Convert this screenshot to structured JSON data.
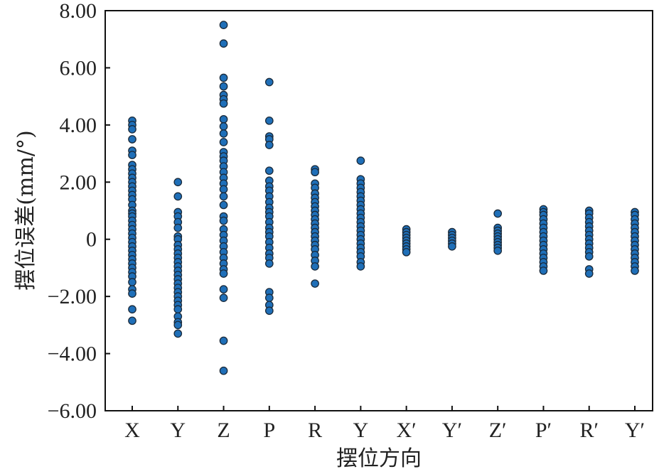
{
  "chart_data": {
    "type": "scatter",
    "title": "",
    "xlabel": "摆位方向",
    "ylabel": "摆位误差(mm/°)",
    "categories": [
      "X",
      "Y",
      "Z",
      "P",
      "R",
      "Y",
      "X′",
      "Y′",
      "Z′",
      "P′",
      "R′",
      "Y′"
    ],
    "yticks": [
      "8.00",
      "6.00",
      "4.00",
      "2.00",
      "0",
      "−2.00",
      "−4.00",
      "−6.00"
    ],
    "ylim": [
      -6,
      8
    ],
    "grid": false,
    "legend": "none",
    "marker_color": "#1f6fb8",
    "marker_edge_color": "#1a2a3a",
    "series": [
      {
        "values": [
          [
            4.15,
            4.0,
            3.85,
            3.5,
            3.1,
            2.95,
            2.6,
            2.45,
            2.3,
            2.15,
            2.0,
            1.85,
            1.7,
            1.55,
            1.4,
            1.2,
            1.0,
            0.9,
            0.8,
            0.65,
            0.5,
            0.35,
            0.2,
            0.05,
            -0.1,
            -0.25,
            -0.4,
            -0.55,
            -0.7,
            -0.85,
            -1.0,
            -1.15,
            -1.3,
            -1.5,
            -1.75,
            -1.9,
            -2.45,
            -2.85
          ],
          [
            2.0,
            1.5,
            0.95,
            0.8,
            0.6,
            0.4,
            0.1,
            0.0,
            -0.2,
            -0.35,
            -0.5,
            -0.65,
            -0.8,
            -0.95,
            -1.1,
            -1.25,
            -1.4,
            -1.55,
            -1.7,
            -1.85,
            -2.0,
            -2.15,
            -2.3,
            -2.45,
            -2.7,
            -2.9,
            -3.0,
            -3.3
          ],
          [
            7.5,
            6.85,
            5.65,
            5.35,
            5.05,
            4.9,
            4.75,
            4.2,
            3.95,
            3.7,
            3.4,
            3.05,
            2.9,
            2.75,
            2.55,
            2.35,
            2.15,
            1.95,
            1.75,
            1.5,
            1.2,
            0.8,
            0.65,
            0.35,
            0.15,
            -0.05,
            -0.25,
            -0.45,
            -0.65,
            -0.85,
            -1.05,
            -1.2,
            -1.75,
            -2.05,
            -3.55,
            -4.6
          ],
          [
            5.5,
            4.15,
            3.6,
            3.5,
            3.3,
            2.4,
            2.05,
            1.85,
            1.7,
            1.5,
            1.3,
            1.1,
            0.95,
            0.8,
            0.6,
            0.4,
            0.25,
            0.1,
            -0.1,
            -0.3,
            -0.5,
            -0.65,
            -0.85,
            -1.85,
            -2.05,
            -2.3,
            -2.5
          ],
          [
            2.45,
            2.35,
            1.95,
            1.8,
            1.6,
            1.45,
            1.3,
            1.15,
            1.0,
            0.85,
            0.7,
            0.55,
            0.4,
            0.25,
            0.1,
            -0.05,
            -0.2,
            -0.35,
            -0.55,
            -0.75,
            -0.95,
            -1.55
          ],
          [
            2.75,
            2.1,
            1.95,
            1.8,
            1.65,
            1.5,
            1.35,
            1.2,
            1.05,
            0.9,
            0.75,
            0.6,
            0.45,
            0.3,
            0.15,
            0.0,
            -0.15,
            -0.3,
            -0.45,
            -0.6,
            -0.8,
            -0.95
          ],
          [
            0.35,
            0.25,
            0.15,
            0.05,
            -0.05,
            -0.15,
            -0.25,
            -0.35,
            -0.45
          ],
          [
            0.25,
            0.15,
            0.05,
            -0.05,
            -0.15,
            -0.25
          ],
          [
            0.9,
            0.4,
            0.3,
            0.2,
            0.1,
            0.0,
            -0.1,
            -0.2,
            -0.3,
            -0.4
          ],
          [
            1.05,
            0.95,
            0.85,
            0.7,
            0.55,
            0.4,
            0.25,
            0.1,
            -0.05,
            -0.2,
            -0.35,
            -0.5,
            -0.65,
            -0.8,
            -0.95,
            -1.1
          ],
          [
            1.0,
            0.9,
            0.75,
            0.6,
            0.45,
            0.3,
            0.15,
            0.0,
            -0.15,
            -0.3,
            -0.45,
            -0.6,
            -1.05,
            -1.2
          ],
          [
            0.95,
            0.85,
            0.7,
            0.55,
            0.4,
            0.25,
            0.1,
            -0.05,
            -0.2,
            -0.35,
            -0.5,
            -0.65,
            -0.8,
            -0.95,
            -1.1
          ]
        ]
      }
    ]
  }
}
